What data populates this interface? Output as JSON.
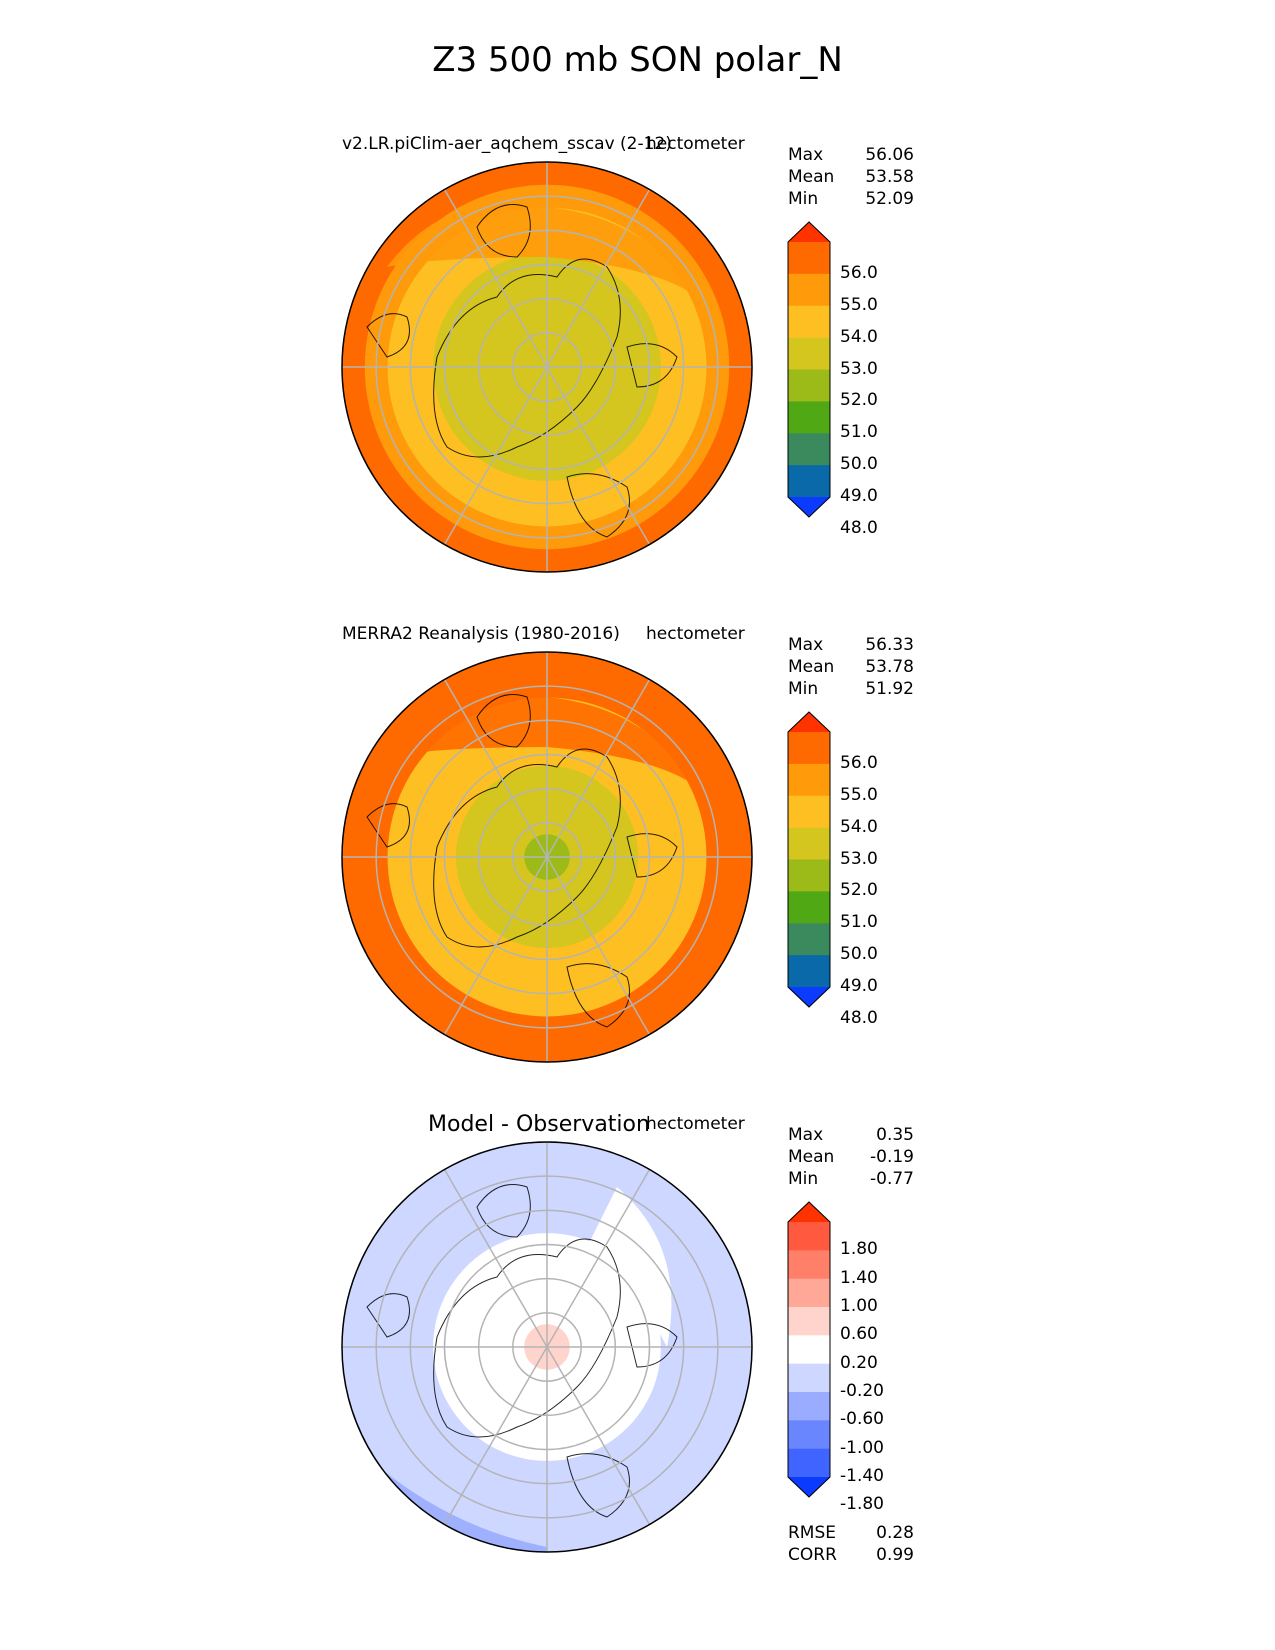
{
  "title": "Z3 500 mb SON polar_N",
  "panels": [
    {
      "id": "test",
      "title": "v2.LR.piClim-aer_aqchem_sscav (2-12)",
      "units": "hectometer",
      "stats": [
        {
          "label": "Max",
          "value": "56.06"
        },
        {
          "label": "Mean",
          "value": "53.58"
        },
        {
          "label": "Min",
          "value": "52.09"
        }
      ],
      "colorbar": {
        "ticks": [
          "56.0",
          "55.0",
          "54.0",
          "53.0",
          "52.0",
          "51.0",
          "50.0",
          "49.0",
          "48.0"
        ],
        "colors": [
          "#ff3300",
          "#ff6a00",
          "#ff9a0a",
          "#fdbf22",
          "#d4c61e",
          "#9cbb18",
          "#50a814",
          "#3b8a5e",
          "#0a69a8",
          "#0a3bff"
        ]
      },
      "rings": [
        "#ff6a00",
        "#ff9a0a",
        "#fdbf22",
        "#fdbf22",
        "#d4c61e",
        "#d4c61e",
        "#d4c61e",
        "#d4c61e",
        "#d4c61e"
      ]
    },
    {
      "id": "ref",
      "title": "MERRA2 Reanalysis (1980-2016)",
      "units": "hectometer",
      "stats": [
        {
          "label": "Max",
          "value": "56.33"
        },
        {
          "label": "Mean",
          "value": "53.78"
        },
        {
          "label": "Min",
          "value": "51.92"
        }
      ],
      "colorbar": {
        "ticks": [
          "56.0",
          "55.0",
          "54.0",
          "53.0",
          "52.0",
          "51.0",
          "50.0",
          "49.0",
          "48.0"
        ],
        "colors": [
          "#ff3300",
          "#ff6a00",
          "#ff9a0a",
          "#fdbf22",
          "#d4c61e",
          "#9cbb18",
          "#50a814",
          "#3b8a5e",
          "#0a69a8",
          "#0a3bff"
        ]
      },
      "rings": [
        "#ff6a00",
        "#ff6a00",
        "#fdbf22",
        "#fdbf22",
        "#fdbf22",
        "#d4c61e",
        "#d4c61e",
        "#d4c61e",
        "#9cbb18"
      ]
    },
    {
      "id": "diff",
      "title": "Model - Observation",
      "units": "hectometer",
      "stats": [
        {
          "label": "Max",
          "value": "0.35"
        },
        {
          "label": "Mean",
          "value": "-0.19"
        },
        {
          "label": "Min",
          "value": "-0.77"
        }
      ],
      "colorbar": {
        "ticks": [
          "1.80",
          "1.40",
          "1.00",
          "0.60",
          "0.20",
          "-0.20",
          "-0.60",
          "-1.00",
          "-1.40",
          "-1.80"
        ],
        "colors": [
          "#ff3300",
          "#ff5a40",
          "#ff7f68",
          "#ffa898",
          "#ffd4cc",
          "#ffffff",
          "#cdd7ff",
          "#9aacff",
          "#6a86ff",
          "#3f64ff",
          "#0a3bff"
        ]
      },
      "rings": [
        "#cdd7ff",
        "#cdd7ff",
        "#cdd7ff",
        "#cdd7ff",
        "#ffffff",
        "#ffffff",
        "#ffffff",
        "#ffffff",
        "#ffd4cc"
      ],
      "metrics": [
        {
          "label": "RMSE",
          "value": "0.28"
        },
        {
          "label": "CORR",
          "value": "0.99"
        }
      ]
    }
  ]
}
